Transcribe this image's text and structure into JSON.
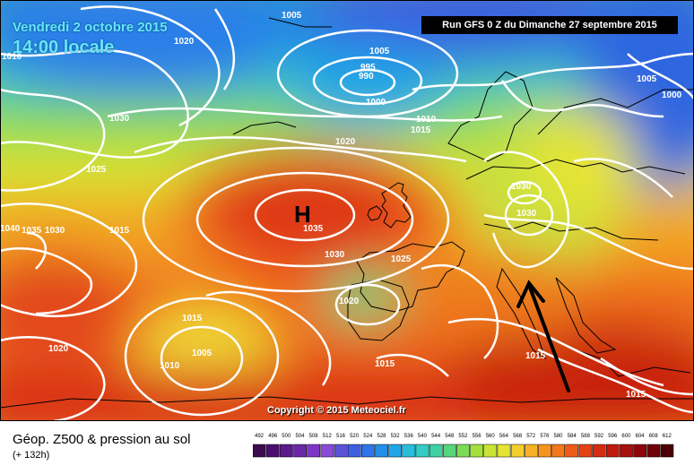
{
  "header": {
    "date": "Vendredi 2 octobre 2015",
    "time": "14:00 locale",
    "run": "Run GFS 0 Z du Dimanche 27 septembre 2015"
  },
  "map": {
    "high_symbol": "H",
    "copyright": "Copyright © 2015 Meteociel.fr",
    "isobar_labels": [
      "1005",
      "1005",
      "995",
      "990",
      "1000",
      "1020",
      "1010",
      "1010",
      "1015",
      "1030",
      "1020",
      "1025",
      "1035",
      "1030",
      "1025",
      "1030",
      "1030",
      "1015",
      "1040",
      "1035",
      "1030",
      "1020",
      "1015",
      "1005",
      "1010",
      "1020",
      "1015",
      "1015",
      "1015",
      "1005",
      "1000"
    ]
  },
  "legend": {
    "title": "Géop. Z500 & pression au sol",
    "subtitle": "(+ 132h)",
    "scale": [
      "492",
      "496",
      "500",
      "504",
      "508",
      "512",
      "516",
      "520",
      "524",
      "528",
      "532",
      "536",
      "540",
      "544",
      "548",
      "552",
      "556",
      "560",
      "564",
      "568",
      "572",
      "576",
      "580",
      "584",
      "588",
      "592",
      "596",
      "600",
      "604",
      "608",
      "612"
    ],
    "colors": [
      "#3b0a4f",
      "#4a0f6e",
      "#5a1b8c",
      "#6a28a8",
      "#7d37c4",
      "#8a4bd6",
      "#5b52d8",
      "#3f5ee0",
      "#2f74e8",
      "#238ee8",
      "#1fa6e6",
      "#27bedc",
      "#33ccc4",
      "#3fd1a2",
      "#55d67c",
      "#7bdb55",
      "#a3e03c",
      "#c8e435",
      "#e6e432",
      "#f2cf2d",
      "#f6b126",
      "#f6941f",
      "#f3781b",
      "#ee5c18",
      "#e44215",
      "#d42c12",
      "#bf1a10",
      "#a80f0e",
      "#8f070c",
      "#6f030a",
      "#4a0006"
    ]
  }
}
